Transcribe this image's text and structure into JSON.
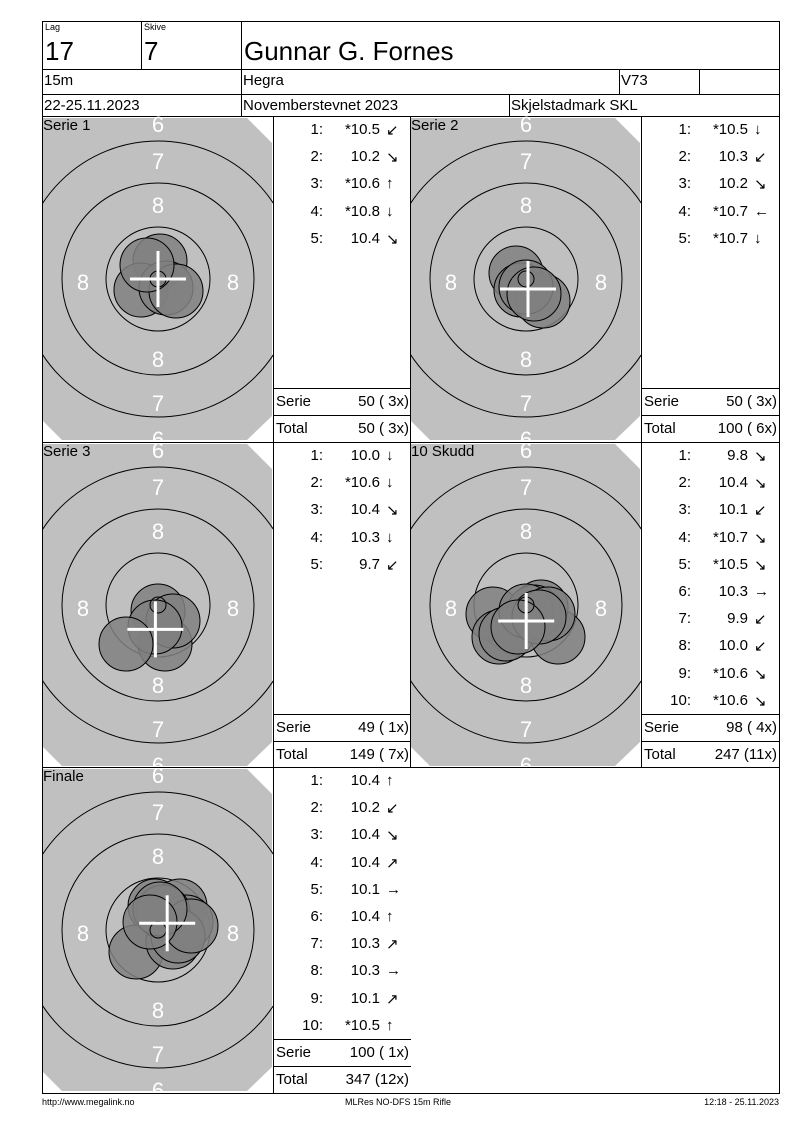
{
  "header": {
    "lag_label": "Lag",
    "lag": "17",
    "skive_label": "Skive",
    "skive": "7",
    "name": "Gunnar G. Fornes",
    "distance": "15m",
    "club": "Hegra",
    "class": "V73",
    "date": "22-25.11.2023",
    "event": "Novemberstevnet 2023",
    "organizer": "Skjelstadmark SKL"
  },
  "colors": {
    "target": "#c0c0c0",
    "shot": "#808080",
    "crosshair": "#ffffff",
    "ring": "#000000"
  },
  "chart_data": [
    {
      "type": "scatter",
      "title": "Serie 1",
      "ring_numbers": [
        "6",
        "7",
        "8"
      ],
      "shots": [
        {
          "n": "1:",
          "score": "*10.5",
          "dir": "↙",
          "x": 0.2,
          "y": -1.8
        },
        {
          "n": "2:",
          "score": "10.2",
          "dir": "↘",
          "x": -1.7,
          "y": 1.1
        },
        {
          "n": "3:",
          "score": "*10.6",
          "dir": "↑",
          "x": 0.8,
          "y": 0.9
        },
        {
          "n": "4:",
          "score": "*10.8",
          "dir": "↓",
          "x": 1.8,
          "y": 1.2
        },
        {
          "n": "5:",
          "score": "10.4",
          "dir": "↘",
          "x": -1.1,
          "y": -1.4
        }
      ],
      "serie_label": "Serie",
      "serie": "50 ( 3x)",
      "total_label": "Total",
      "total": "50 ( 3x)"
    },
    {
      "type": "scatter",
      "title": "Serie 2",
      "ring_numbers": [
        "6",
        "7",
        "8"
      ],
      "shots": [
        {
          "n": "1:",
          "score": "*10.5",
          "dir": "↓",
          "x": -1.0,
          "y": -0.6
        },
        {
          "n": "2:",
          "score": "10.3",
          "dir": "↙",
          "x": -0.5,
          "y": 1.1
        },
        {
          "n": "3:",
          "score": "10.2",
          "dir": "↘",
          "x": 1.7,
          "y": 2.2
        },
        {
          "n": "4:",
          "score": "*10.7",
          "dir": "←",
          "x": 0.0,
          "y": 0.8
        },
        {
          "n": "5:",
          "score": "*10.7",
          "dir": "↓",
          "x": 0.8,
          "y": 1.5
        }
      ],
      "serie_label": "Serie",
      "serie": "50 ( 3x)",
      "total_label": "Total",
      "total": "100 ( 6x)"
    },
    {
      "type": "scatter",
      "title": "Serie 3",
      "ring_numbers": [
        "6",
        "7",
        "8"
      ],
      "shots": [
        {
          "n": "1:",
          "score": "10.0",
          "dir": "↓",
          "x": 0.7,
          "y": 3.9
        },
        {
          "n": "2:",
          "score": "*10.6",
          "dir": "↓",
          "x": 0.0,
          "y": 0.6
        },
        {
          "n": "3:",
          "score": "10.4",
          "dir": "↘",
          "x": 1.5,
          "y": 1.6
        },
        {
          "n": "4:",
          "score": "10.3",
          "dir": "↓",
          "x": -0.3,
          "y": 2.2
        },
        {
          "n": "5:",
          "score": "9.7",
          "dir": "↙",
          "x": -3.2,
          "y": 3.9
        }
      ],
      "serie_label": "Serie",
      "serie": "49 ( 1x)",
      "total_label": "Total",
      "total": "149 ( 7x)"
    },
    {
      "type": "scatter",
      "title": "10 Skudd",
      "ring_numbers": [
        "6",
        "7",
        "8"
      ],
      "shots": [
        {
          "n": "1:",
          "score": "9.8",
          "dir": "↘",
          "x": -3.3,
          "y": 0.9
        },
        {
          "n": "2:",
          "score": "10.4",
          "dir": "↘",
          "x": -2.7,
          "y": 3.2
        },
        {
          "n": "3:",
          "score": "10.1",
          "dir": "↙",
          "x": 3.2,
          "y": 3.2
        },
        {
          "n": "4:",
          "score": "*10.7",
          "dir": "↘",
          "x": 1.5,
          "y": 0.2
        },
        {
          "n": "5:",
          "score": "*10.5",
          "dir": "↘",
          "x": 0.8,
          "y": 0.7
        },
        {
          "n": "6:",
          "score": "10.3",
          "dir": "→",
          "x": -2.0,
          "y": 2.9
        },
        {
          "n": "7:",
          "score": "9.9",
          "dir": "↙",
          "x": 0.0,
          "y": 0.6
        },
        {
          "n": "8:",
          "score": "10.0",
          "dir": "↙",
          "x": 2.2,
          "y": 0.9
        },
        {
          "n": "9:",
          "score": "*10.6",
          "dir": "↘",
          "x": 1.3,
          "y": 1.2
        },
        {
          "n": "10:",
          "score": "*10.6",
          "dir": "↘",
          "x": -0.8,
          "y": 2.2
        }
      ],
      "serie_label": "Serie",
      "serie": "98 ( 4x)",
      "total_label": "Total",
      "total": "247 (11x)"
    },
    {
      "type": "scatter",
      "title": "Finale",
      "ring_numbers": [
        "6",
        "7",
        "8"
      ],
      "shots": [
        {
          "n": "1:",
          "score": "10.4",
          "dir": "↑",
          "x": -0.3,
          "y": -2.4
        },
        {
          "n": "2:",
          "score": "10.2",
          "dir": "↙",
          "x": -2.2,
          "y": 2.2
        },
        {
          "n": "3:",
          "score": "10.4",
          "dir": "↘",
          "x": 1.5,
          "y": 1.2
        },
        {
          "n": "4:",
          "score": "10.4",
          "dir": "↗",
          "x": 2.2,
          "y": -2.4
        },
        {
          "n": "5:",
          "score": "10.1",
          "dir": "→",
          "x": 2.8,
          "y": -0.8
        },
        {
          "n": "6:",
          "score": "10.4",
          "dir": "↑",
          "x": 0.5,
          "y": -1.8
        },
        {
          "n": "7:",
          "score": "10.3",
          "dir": "↗",
          "x": 2.0,
          "y": 0.6
        },
        {
          "n": "8:",
          "score": "10.3",
          "dir": "→",
          "x": 3.3,
          "y": -0.4
        },
        {
          "n": "9:",
          "score": "10.1",
          "dir": "↗",
          "x": 0.2,
          "y": -2.1
        },
        {
          "n": "10:",
          "score": "*10.5",
          "dir": "↑",
          "x": -0.8,
          "y": -0.8
        }
      ],
      "serie_label": "Serie",
      "serie": "100 ( 1x)",
      "total_label": "Total",
      "total": "347 (12x)"
    }
  ],
  "footer": {
    "url": "http://www.megalink.no",
    "software": "MLRes NO-DFS 15m Rifle",
    "printed": "12:18 - 25.11.2023"
  }
}
